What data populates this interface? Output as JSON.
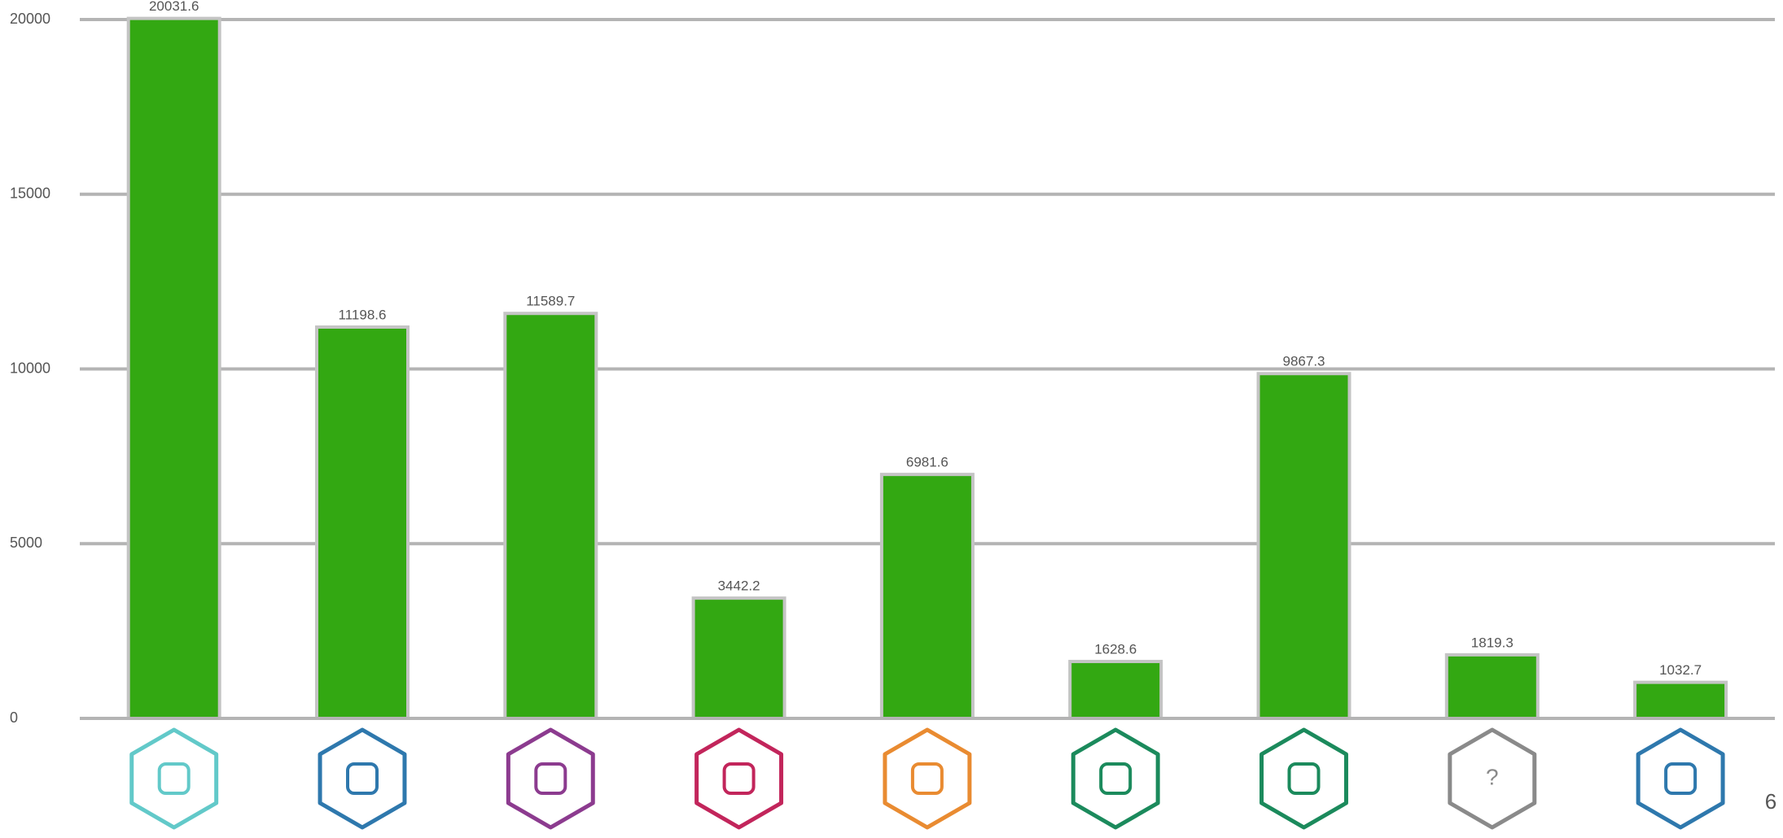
{
  "chart_data": {
    "type": "bar",
    "categories": [
      null,
      null,
      null,
      null,
      null,
      null,
      null,
      "?",
      null
    ],
    "values": [
      20031.6,
      11198.6,
      11589.7,
      3442.2,
      6981.6,
      1628.6,
      9867.3,
      1819.3,
      1032.7
    ],
    "color": "#33a812",
    "ylim": [
      0,
      20000
    ],
    "yticks": [
      0,
      5000,
      10000,
      15000,
      20000
    ],
    "grid": true,
    "icon_colors": [
      "#62c9c9",
      "#2e78ad",
      "#8c3b8f",
      "#c2255b",
      "#e98b31",
      "#1b8a5c",
      "#1b8a5c",
      "#8a8a8a",
      "#2e78ad"
    ]
  },
  "page_number": "6"
}
